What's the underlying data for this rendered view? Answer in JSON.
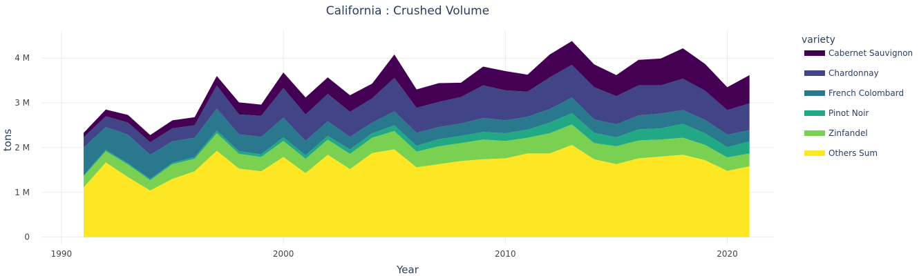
{
  "chart_data": {
    "type": "area",
    "stacked": true,
    "title": "California : Crushed Volume",
    "xlabel": "Year",
    "ylabel": "tons",
    "xlim": [
      1989.1,
      2022.1
    ],
    "ylim": [
      -160000,
      4620000
    ],
    "x_ticks": [
      1990,
      2000,
      2010,
      2020
    ],
    "y_ticks": [
      0,
      1000000,
      2000000,
      3000000,
      4000000
    ],
    "y_tick_labels": [
      "0",
      "1 M",
      "2 M",
      "3 M",
      "4 M"
    ],
    "grid": true,
    "legend_title": "variety",
    "legend_position": "right",
    "x": [
      1991,
      1992,
      1993,
      1994,
      1995,
      1996,
      1997,
      1998,
      1999,
      2000,
      2001,
      2002,
      2003,
      2004,
      2005,
      2006,
      2007,
      2008,
      2009,
      2010,
      2011,
      2012,
      2013,
      2014,
      2015,
      2016,
      2017,
      2018,
      2019,
      2020,
      2021
    ],
    "series": [
      {
        "name": "Others Sum",
        "color": "#fde725",
        "values": [
          1110000,
          1670000,
          1340000,
          1040000,
          1300000,
          1470000,
          1930000,
          1530000,
          1470000,
          1790000,
          1430000,
          1840000,
          1520000,
          1880000,
          1960000,
          1560000,
          1630000,
          1700000,
          1740000,
          1760000,
          1870000,
          1870000,
          2060000,
          1740000,
          1630000,
          1760000,
          1800000,
          1840000,
          1720000,
          1480000,
          1580000
        ]
      },
      {
        "name": "Zinfandel",
        "color": "#7ad151",
        "values": [
          250000,
          250000,
          280000,
          230000,
          330000,
          280000,
          390000,
          330000,
          320000,
          360000,
          320000,
          340000,
          340000,
          340000,
          410000,
          350000,
          400000,
          400000,
          440000,
          390000,
          350000,
          450000,
          460000,
          360000,
          400000,
          400000,
          380000,
          380000,
          340000,
          300000,
          290000
        ]
      },
      {
        "name": "Pinot Noir",
        "color": "#22a884",
        "values": [
          20000,
          30000,
          30000,
          30000,
          30000,
          40000,
          60000,
          60000,
          60000,
          80000,
          80000,
          80000,
          100000,
          100000,
          130000,
          130000,
          160000,
          160000,
          170000,
          170000,
          180000,
          240000,
          250000,
          230000,
          200000,
          250000,
          250000,
          310000,
          260000,
          230000,
          270000
        ]
      },
      {
        "name": "French Colombard",
        "color": "#2a788e",
        "values": [
          620000,
          510000,
          640000,
          540000,
          480000,
          430000,
          490000,
          380000,
          390000,
          440000,
          320000,
          330000,
          280000,
          240000,
          310000,
          290000,
          270000,
          280000,
          310000,
          290000,
          290000,
          300000,
          350000,
          300000,
          290000,
          310000,
          330000,
          310000,
          300000,
          280000,
          250000
        ]
      },
      {
        "name": "Chardonnay",
        "color": "#414487",
        "values": [
          230000,
          240000,
          270000,
          280000,
          290000,
          280000,
          520000,
          440000,
          470000,
          660000,
          590000,
          610000,
          560000,
          540000,
          750000,
          560000,
          560000,
          590000,
          730000,
          670000,
          560000,
          710000,
          730000,
          720000,
          630000,
          670000,
          630000,
          700000,
          650000,
          550000,
          600000
        ]
      },
      {
        "name": "Cabernet Sauvignon",
        "color": "#440154",
        "values": [
          100000,
          150000,
          170000,
          160000,
          180000,
          180000,
          210000,
          270000,
          250000,
          350000,
          380000,
          370000,
          370000,
          330000,
          520000,
          410000,
          420000,
          320000,
          420000,
          430000,
          380000,
          510000,
          530000,
          510000,
          470000,
          570000,
          600000,
          680000,
          600000,
          510000,
          630000
        ]
      }
    ]
  }
}
